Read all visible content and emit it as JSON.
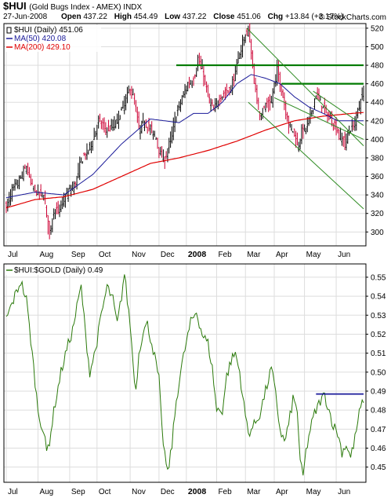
{
  "header": {
    "symbol": "$HUI",
    "description": "(Gold Bugs Index - AMEX) INDX",
    "date": "27-Jun-2008",
    "open_label": "Open",
    "open_value": "437.22",
    "high_label": "High",
    "high_value": "454.49",
    "low_label": "Low",
    "low_value": "437.22",
    "close_label": "Close",
    "close_value": "451.06",
    "chg_label": "Chg",
    "chg_value": "+13.84 (+3.17%)",
    "brand": "© StockCharts.com"
  },
  "colors": {
    "price": "#000000",
    "down": "#cc0033",
    "ma50": "#1a1a99",
    "ma200": "#e00000",
    "ratio": "#2b7a0b",
    "trendline": "#2e8b22",
    "resistance": "#007a00",
    "ratio_resistance": "#1a1a99",
    "grid": "#dddddd"
  },
  "chart_data": [
    {
      "type": "line",
      "panel": "price",
      "legend": [
        {
          "label": "$HUI (Daily) 451.06",
          "swatch": "candle"
        },
        {
          "label": "MA(50) 420.08",
          "color": "#1a1a99"
        },
        {
          "label": "MA(200) 429.10",
          "color": "#e00000"
        }
      ],
      "ylim": [
        285,
        525
      ],
      "yticks": [
        300,
        320,
        340,
        360,
        380,
        400,
        420,
        440,
        460,
        480,
        500,
        520
      ],
      "months": [
        "Jul",
        "Aug",
        "Sep",
        "Oct",
        "Nov",
        "Dec",
        "2008",
        "Feb",
        "Mar",
        "Apr",
        "May",
        "Jun"
      ],
      "month_index": [
        0,
        22,
        44,
        63,
        86,
        106,
        125,
        146,
        166,
        186,
        207,
        229
      ],
      "price_anchors": [
        [
          0,
          327
        ],
        [
          4,
          345
        ],
        [
          8,
          352
        ],
        [
          12,
          365
        ],
        [
          14,
          370
        ],
        [
          18,
          348
        ],
        [
          22,
          342
        ],
        [
          26,
          340
        ],
        [
          28,
          318
        ],
        [
          30,
          297
        ],
        [
          33,
          325
        ],
        [
          36,
          322
        ],
        [
          40,
          335
        ],
        [
          44,
          345
        ],
        [
          48,
          352
        ],
        [
          52,
          378
        ],
        [
          56,
          386
        ],
        [
          60,
          400
        ],
        [
          64,
          420
        ],
        [
          68,
          412
        ],
        [
          72,
          412
        ],
        [
          76,
          418
        ],
        [
          80,
          432
        ],
        [
          84,
          448
        ],
        [
          86,
          456
        ],
        [
          89,
          440
        ],
        [
          92,
          410
        ],
        [
          96,
          420
        ],
        [
          100,
          410
        ],
        [
          104,
          402
        ],
        [
          107,
          383
        ],
        [
          110,
          378
        ],
        [
          114,
          400
        ],
        [
          118,
          428
        ],
        [
          122,
          444
        ],
        [
          126,
          460
        ],
        [
          130,
          465
        ],
        [
          133,
          485
        ],
        [
          136,
          475
        ],
        [
          140,
          445
        ],
        [
          144,
          430
        ],
        [
          148,
          446
        ],
        [
          152,
          450
        ],
        [
          156,
          455
        ],
        [
          160,
          480
        ],
        [
          164,
          505
        ],
        [
          166,
          512
        ],
        [
          168,
          520
        ],
        [
          170,
          490
        ],
        [
          174,
          440
        ],
        [
          176,
          428
        ],
        [
          180,
          435
        ],
        [
          184,
          440
        ],
        [
          186,
          460
        ],
        [
          188,
          475
        ],
        [
          192,
          446
        ],
        [
          196,
          415
        ],
        [
          200,
          408
        ],
        [
          202,
          392
        ],
        [
          205,
          408
        ],
        [
          208,
          412
        ],
        [
          212,
          430
        ],
        [
          215,
          450
        ],
        [
          218,
          440
        ],
        [
          222,
          428
        ],
        [
          226,
          420
        ],
        [
          229,
          412
        ],
        [
          232,
          402
        ],
        [
          235,
          396
        ],
        [
          238,
          410
        ],
        [
          241,
          415
        ],
        [
          244,
          430
        ],
        [
          246,
          445
        ],
        [
          248,
          451
        ]
      ],
      "ma50_anchors": [
        [
          0,
          337
        ],
        [
          20,
          343
        ],
        [
          40,
          340
        ],
        [
          60,
          362
        ],
        [
          80,
          395
        ],
        [
          100,
          422
        ],
        [
          110,
          420
        ],
        [
          120,
          418
        ],
        [
          130,
          428
        ],
        [
          140,
          428
        ],
        [
          150,
          440
        ],
        [
          160,
          460
        ],
        [
          170,
          470
        ],
        [
          180,
          466
        ],
        [
          190,
          460
        ],
        [
          200,
          446
        ],
        [
          210,
          435
        ],
        [
          220,
          428
        ],
        [
          230,
          420
        ],
        [
          240,
          420
        ],
        [
          248,
          420
        ]
      ],
      "ma200_anchors": [
        [
          0,
          326
        ],
        [
          20,
          335
        ],
        [
          40,
          338
        ],
        [
          60,
          346
        ],
        [
          80,
          360
        ],
        [
          100,
          374
        ],
        [
          120,
          380
        ],
        [
          140,
          388
        ],
        [
          160,
          398
        ],
        [
          180,
          410
        ],
        [
          200,
          420
        ],
        [
          220,
          425
        ],
        [
          240,
          428
        ],
        [
          248,
          429
        ]
      ],
      "annotations": [
        {
          "kind": "hline",
          "x1": 118,
          "x2": 248,
          "y": 480,
          "color": "#007a00"
        },
        {
          "kind": "hline",
          "x1": 191,
          "x2": 248,
          "y": 460,
          "color": "#007a00"
        },
        {
          "kind": "line",
          "x1": 167,
          "y1": 520,
          "x2": 248,
          "y2": 393,
          "color": "#2e8b22"
        },
        {
          "kind": "line",
          "x1": 168,
          "y1": 440,
          "x2": 248,
          "y2": 325,
          "color": "#2e8b22"
        },
        {
          "kind": "line",
          "x1": 186,
          "y1": 445,
          "x2": 248,
          "y2": 400,
          "color": "#2e8b22"
        },
        {
          "kind": "line",
          "x1": 213,
          "y1": 452,
          "x2": 248,
          "y2": 415,
          "color": "#2e8b22"
        }
      ]
    },
    {
      "type": "line",
      "panel": "ratio",
      "legend": [
        {
          "label": "$HUI:$GOLD (Daily) 0.49",
          "color": "#2b7a0b"
        }
      ],
      "ylim": [
        0.442,
        0.557
      ],
      "yticks": [
        0.45,
        0.46,
        0.47,
        0.48,
        0.49,
        0.5,
        0.51,
        0.52,
        0.53,
        0.54,
        0.55
      ],
      "months": [
        "Jul",
        "Aug",
        "Sep",
        "Oct",
        "Nov",
        "Dec",
        "2008",
        "Feb",
        "Mar",
        "Apr",
        "May",
        "Jun"
      ],
      "month_index": [
        0,
        22,
        44,
        63,
        86,
        106,
        125,
        146,
        166,
        186,
        207,
        229
      ],
      "ratio_anchors": [
        [
          0,
          0.528
        ],
        [
          6,
          0.54
        ],
        [
          10,
          0.548
        ],
        [
          14,
          0.538
        ],
        [
          18,
          0.51
        ],
        [
          22,
          0.48
        ],
        [
          26,
          0.468
        ],
        [
          28,
          0.458
        ],
        [
          30,
          0.464
        ],
        [
          34,
          0.484
        ],
        [
          38,
          0.5
        ],
        [
          42,
          0.512
        ],
        [
          46,
          0.522
        ],
        [
          50,
          0.538
        ],
        [
          52,
          0.545
        ],
        [
          55,
          0.52
        ],
        [
          58,
          0.5
        ],
        [
          62,
          0.512
        ],
        [
          66,
          0.53
        ],
        [
          70,
          0.545
        ],
        [
          74,
          0.538
        ],
        [
          77,
          0.525
        ],
        [
          80,
          0.54
        ],
        [
          82,
          0.552
        ],
        [
          84,
          0.538
        ],
        [
          86,
          0.525
        ],
        [
          88,
          0.505
        ],
        [
          90,
          0.49
        ],
        [
          92,
          0.51
        ],
        [
          95,
          0.522
        ],
        [
          98,
          0.525
        ],
        [
          102,
          0.512
        ],
        [
          106,
          0.496
        ],
        [
          108,
          0.47
        ],
        [
          110,
          0.457
        ],
        [
          112,
          0.446
        ],
        [
          115,
          0.462
        ],
        [
          118,
          0.485
        ],
        [
          121,
          0.5
        ],
        [
          124,
          0.512
        ],
        [
          128,
          0.526
        ],
        [
          132,
          0.532
        ],
        [
          136,
          0.52
        ],
        [
          140,
          0.515
        ],
        [
          143,
          0.502
        ],
        [
          146,
          0.48
        ],
        [
          150,
          0.48
        ],
        [
          153,
          0.498
        ],
        [
          156,
          0.506
        ],
        [
          159,
          0.51
        ],
        [
          162,
          0.5
        ],
        [
          165,
          0.482
        ],
        [
          168,
          0.468
        ],
        [
          172,
          0.472
        ],
        [
          176,
          0.478
        ],
        [
          180,
          0.49
        ],
        [
          184,
          0.502
        ],
        [
          187,
          0.488
        ],
        [
          190,
          0.47
        ],
        [
          193,
          0.463
        ],
        [
          196,
          0.472
        ],
        [
          199,
          0.486
        ],
        [
          202,
          0.48
        ],
        [
          204,
          0.452
        ],
        [
          206,
          0.445
        ],
        [
          208,
          0.458
        ],
        [
          211,
          0.47
        ],
        [
          214,
          0.478
        ],
        [
          218,
          0.485
        ],
        [
          221,
          0.488
        ],
        [
          224,
          0.48
        ],
        [
          227,
          0.472
        ],
        [
          230,
          0.468
        ],
        [
          233,
          0.458
        ],
        [
          236,
          0.462
        ],
        [
          239,
          0.455
        ],
        [
          242,
          0.465
        ],
        [
          245,
          0.478
        ],
        [
          248,
          0.486
        ]
      ],
      "annotations": [
        {
          "kind": "hline",
          "x1": 215,
          "x2": 248,
          "y": 0.4885,
          "color": "#1a1a99"
        }
      ]
    }
  ]
}
